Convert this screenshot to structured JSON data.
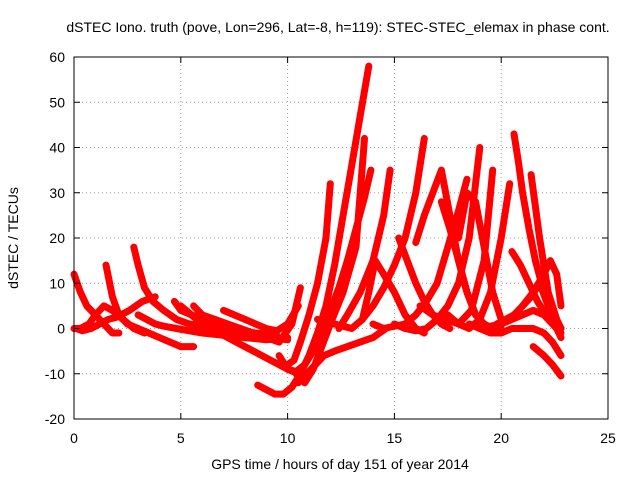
{
  "chart_data": {
    "type": "line",
    "title": "dSTEC Iono. truth (pove, Lon=296, Lat=-8, h=119): STEC-STEC_elemax in phase cont.",
    "xlabel": "GPS time / hours of day 151 of year 2014",
    "ylabel": "dSTEC  / TECUs",
    "xlim": [
      0,
      25
    ],
    "ylim": [
      -20,
      60
    ],
    "xticks": [
      0,
      5,
      10,
      15,
      20,
      25
    ],
    "yticks": [
      -20,
      -10,
      0,
      10,
      20,
      30,
      40,
      50,
      60
    ],
    "grid": true,
    "legend": "none",
    "color": "#ff0000",
    "series": [
      {
        "x": [
          0.0,
          0.3,
          0.6,
          1.0,
          1.4,
          1.8,
          2.1
        ],
        "y": [
          12,
          8,
          5,
          3,
          1,
          -1,
          -1
        ]
      },
      {
        "x": [
          0.0,
          0.3,
          0.7,
          1.0,
          1.4,
          1.8,
          2.3,
          2.8,
          3.3
        ],
        "y": [
          0,
          0,
          1,
          3,
          5,
          4,
          2,
          0,
          -1
        ]
      },
      {
        "x": [
          0.1,
          0.4,
          0.8,
          1.2,
          1.6,
          2.0,
          2.6,
          3.2,
          3.8
        ],
        "y": [
          0,
          -0.5,
          0,
          1,
          2,
          2.5,
          4,
          6,
          7
        ]
      },
      {
        "x": [
          1.5,
          1.8,
          2.1,
          2.5,
          3.0,
          3.5,
          4.0,
          4.5,
          5.0,
          5.6
        ],
        "y": [
          14,
          7,
          3,
          1,
          0,
          -1,
          -2,
          -3,
          -4,
          -4
        ]
      },
      {
        "x": [
          2.8,
          3.0,
          3.3,
          3.7,
          4.2,
          4.8,
          5.4,
          6.0,
          6.8,
          7.5,
          8.5,
          9.5
        ],
        "y": [
          18,
          14,
          9,
          6,
          4,
          2,
          1,
          0.5,
          0,
          -0.5,
          -1,
          -1.5
        ]
      },
      {
        "x": [
          3.0,
          3.4,
          3.8,
          4.2,
          4.8,
          5.4,
          6.0,
          7.0,
          8.0,
          9.0,
          10.0
        ],
        "y": [
          3,
          2,
          1,
          0.5,
          0,
          -0.5,
          -1,
          -1.5,
          -2,
          -2.5,
          -2
        ]
      },
      {
        "x": [
          4.7,
          5.0,
          5.5,
          6.0,
          6.6,
          7.2,
          7.8,
          8.5,
          9.2,
          10.0
        ],
        "y": [
          6,
          4,
          3,
          2,
          1,
          0,
          -1,
          -1.5,
          -2,
          -2.5
        ]
      },
      {
        "x": [
          5.0,
          5.5,
          6.0,
          6.8,
          7.6,
          8.4,
          9.2,
          10.0,
          10.5
        ],
        "y": [
          5,
          3,
          1,
          -1,
          -3,
          -5,
          -7,
          -9,
          -10
        ]
      },
      {
        "x": [
          5.6,
          6.0,
          6.6,
          7.2,
          7.8,
          8.4,
          9.0,
          9.6,
          10.2,
          10.6
        ],
        "y": [
          5,
          3,
          2,
          1,
          0,
          -1,
          -2,
          -3,
          1,
          9
        ]
      },
      {
        "x": [
          7.0,
          7.5,
          8.0,
          8.5,
          9.0,
          9.5,
          10.0,
          10.5
        ],
        "y": [
          4,
          3,
          2,
          1,
          0,
          -0.5,
          1,
          5
        ]
      },
      {
        "x": [
          8.6,
          9.0,
          9.4,
          9.8,
          10.2,
          10.6,
          11.0,
          11.4,
          11.8,
          12.2,
          12.6,
          13.0,
          13.4,
          13.8
        ],
        "y": [
          -12.5,
          -13.5,
          -14.5,
          -14.5,
          -13,
          -10,
          -6,
          -1,
          5,
          14,
          25,
          36,
          47,
          58
        ]
      },
      {
        "x": [
          9.6,
          10.0,
          10.4,
          10.8,
          11.2,
          11.6,
          12.0,
          12.4,
          12.8,
          13.2,
          13.6,
          13.9
        ],
        "y": [
          -6,
          -9,
          -9.5,
          -8,
          -5,
          -1,
          4,
          9,
          15,
          22,
          29,
          35
        ]
      },
      {
        "x": [
          10.0,
          10.3,
          10.6,
          11.0,
          11.4,
          11.8,
          12.0
        ],
        "y": [
          -8,
          -7,
          -3,
          3,
          10,
          20,
          32
        ]
      },
      {
        "x": [
          10.4,
          10.8,
          11.2,
          11.6,
          12.0,
          12.6,
          13.2,
          13.6
        ],
        "y": [
          -10,
          -12,
          -9,
          -4,
          1,
          8,
          18,
          42
        ]
      },
      {
        "x": [
          10.5,
          10.9,
          11.3,
          11.7,
          12.2,
          12.8,
          13.4,
          14.0,
          14.6
        ],
        "y": [
          -12,
          -10,
          -8,
          -6,
          -5,
          -4,
          -3,
          -2,
          0
        ]
      },
      {
        "x": [
          11.4,
          11.8,
          12.2,
          12.6,
          13.0,
          13.5,
          14.0,
          14.5,
          15.0,
          15.5,
          16.0,
          16.4
        ],
        "y": [
          2,
          1,
          1,
          0.5,
          0,
          2,
          5,
          9,
          14,
          20,
          30,
          42
        ]
      },
      {
        "x": [
          12.4,
          12.8,
          13.4,
          14.0,
          14.5,
          14.8
        ],
        "y": [
          0,
          3,
          8,
          15,
          25,
          35
        ]
      },
      {
        "x": [
          13.5,
          13.8,
          14.1,
          14.5,
          15.0,
          15.5,
          16.0,
          16.4
        ],
        "y": [
          2,
          8,
          15,
          12,
          8,
          3,
          0,
          -1
        ]
      },
      {
        "x": [
          14.0,
          14.5,
          15.0,
          15.5,
          16.0,
          16.5,
          17.0,
          17.5,
          18.0,
          18.4
        ],
        "y": [
          1,
          0,
          0.5,
          1,
          3,
          6,
          10,
          18,
          26,
          33
        ]
      },
      {
        "x": [
          15.2,
          15.6,
          16.0,
          16.4,
          16.8,
          17.2,
          17.6
        ],
        "y": [
          20,
          15,
          10,
          6,
          3,
          1,
          0
        ]
      },
      {
        "x": [
          15.0,
          15.5,
          16.0,
          16.5,
          17.0,
          17.5,
          18.0,
          18.5,
          19.0
        ],
        "y": [
          1,
          0,
          -0.5,
          0,
          2,
          5,
          10,
          20,
          40
        ]
      },
      {
        "x": [
          16.0,
          16.4,
          16.8,
          17.2,
          17.6,
          18.0,
          18.4,
          18.8
        ],
        "y": [
          19,
          25,
          30,
          35,
          25,
          15,
          8,
          3
        ]
      },
      {
        "x": [
          16.2,
          16.8,
          17.4,
          18.0,
          18.6,
          19.2,
          19.6
        ],
        "y": [
          5,
          3,
          2,
          1,
          4,
          15,
          35
        ]
      },
      {
        "x": [
          17.2,
          17.6,
          18.0,
          18.4,
          18.8,
          19.2,
          19.6,
          20.0
        ],
        "y": [
          28,
          22,
          15,
          8,
          3,
          1,
          0,
          0
        ]
      },
      {
        "x": [
          17.5,
          18.0,
          18.5,
          19.0,
          19.5,
          20.0,
          20.4
        ],
        "y": [
          3,
          1,
          0,
          2,
          8,
          20,
          32
        ]
      },
      {
        "x": [
          18.0,
          18.4,
          18.8,
          19.2,
          19.6,
          20.0
        ],
        "y": [
          20,
          30,
          28,
          18,
          8,
          2
        ]
      },
      {
        "x": [
          18.5,
          19.0,
          19.5,
          20.0,
          20.5,
          21.0,
          21.5,
          22.0,
          22.4,
          22.8
        ],
        "y": [
          1,
          0,
          0.5,
          1,
          2,
          3,
          4,
          3,
          1,
          -1
        ]
      },
      {
        "x": [
          19.0,
          19.5,
          20.0,
          20.5,
          21.0,
          21.5,
          22.0,
          22.4,
          22.8
        ],
        "y": [
          0,
          -1,
          -1,
          0,
          0,
          0,
          -1,
          -3,
          -6
        ]
      },
      {
        "x": [
          20.6,
          20.8,
          21.0,
          21.3,
          21.6,
          22.0,
          22.4,
          22.8
        ],
        "y": [
          43,
          37,
          30,
          22,
          15,
          8,
          3,
          0
        ]
      },
      {
        "x": [
          20.5,
          20.9,
          21.3,
          21.7,
          22.1,
          22.5,
          22.8
        ],
        "y": [
          17,
          14,
          10,
          6,
          3,
          1,
          0
        ]
      },
      {
        "x": [
          21.4,
          21.8,
          22.2,
          22.6,
          22.8
        ],
        "y": [
          34,
          20,
          8,
          2,
          0
        ]
      },
      {
        "x": [
          21.0,
          21.5,
          22.0,
          22.3,
          22.6,
          22.8
        ],
        "y": [
          5,
          8,
          12,
          15,
          12,
          5
        ]
      },
      {
        "x": [
          21.5,
          22.0,
          22.4,
          22.8
        ],
        "y": [
          -4,
          -6,
          -8,
          -10.5
        ]
      },
      {
        "x": [
          19.8,
          20.2,
          20.6,
          21.0,
          21.4,
          21.8,
          22.2,
          22.6,
          22.8
        ],
        "y": [
          1,
          2,
          3,
          5,
          7,
          10,
          5,
          0,
          -2
        ]
      }
    ]
  }
}
